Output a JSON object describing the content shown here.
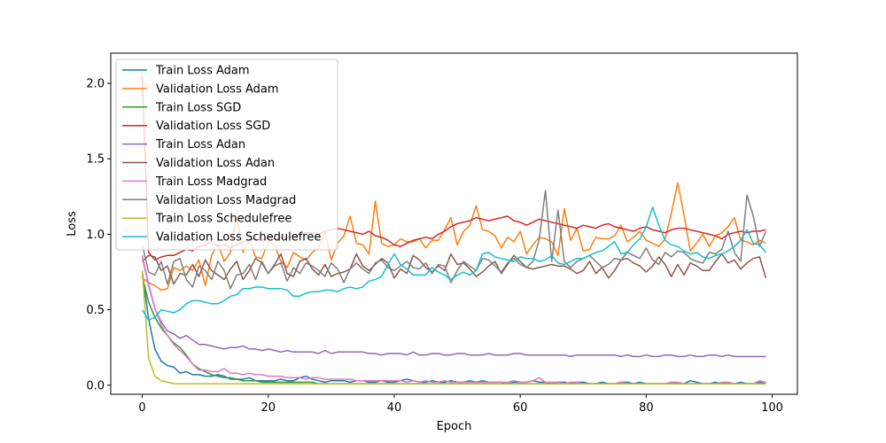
{
  "chart_data": {
    "type": "line",
    "title": "",
    "xlabel": "Epoch",
    "ylabel": "Loss",
    "xlim": [
      -5,
      104
    ],
    "ylim": [
      -0.06,
      2.2
    ],
    "xticks": [
      0,
      20,
      40,
      60,
      80,
      100
    ],
    "yticks": [
      0.0,
      0.5,
      1.0,
      1.5,
      2.0
    ],
    "xtick_labels": [
      "0",
      "20",
      "40",
      "60",
      "80",
      "100"
    ],
    "ytick_labels": [
      "0.0",
      "0.5",
      "1.0",
      "1.5",
      "2.0"
    ],
    "legend_position": "upper-left",
    "series": [
      {
        "name": "Train Loss Adam",
        "color": "#1f77b4",
        "values": [
          0.75,
          0.44,
          0.24,
          0.16,
          0.13,
          0.12,
          0.08,
          0.09,
          0.07,
          0.07,
          0.06,
          0.06,
          0.07,
          0.06,
          0.04,
          0.04,
          0.04,
          0.05,
          0.03,
          0.03,
          0.03,
          0.03,
          0.04,
          0.03,
          0.03,
          0.05,
          0.06,
          0.04,
          0.03,
          0.02,
          0.03,
          0.03,
          0.03,
          0.02,
          0.03,
          0.03,
          0.02,
          0.02,
          0.03,
          0.02,
          0.02,
          0.03,
          0.04,
          0.03,
          0.02,
          0.02,
          0.03,
          0.02,
          0.02,
          0.03,
          0.02,
          0.02,
          0.03,
          0.02,
          0.03,
          0.02,
          0.02,
          0.02,
          0.01,
          0.02,
          0.02,
          0.02,
          0.03,
          0.02,
          0.02,
          0.01,
          0.02,
          0.02,
          0.01,
          0.02,
          0.02,
          0.01,
          0.01,
          0.02,
          0.01,
          0.01,
          0.02,
          0.02,
          0.01,
          0.02,
          0.01,
          0.01,
          0.01,
          0.01,
          0.02,
          0.01,
          0.01,
          0.03,
          0.02,
          0.01,
          0.01,
          0.02,
          0.01,
          0.02,
          0.01,
          0.02,
          0.01,
          0.01,
          0.02,
          0.01
        ]
      },
      {
        "name": "Validation Loss Adam",
        "color": "#ff7f0e",
        "values": [
          0.71,
          0.68,
          0.66,
          0.63,
          0.64,
          0.78,
          0.76,
          0.79,
          0.76,
          0.83,
          0.66,
          0.86,
          0.94,
          0.82,
          0.88,
          1.12,
          0.88,
          0.96,
          0.85,
          0.84,
          0.95,
          0.93,
          0.82,
          0.78,
          0.88,
          0.85,
          0.83,
          0.88,
          0.91,
          1.02,
          0.83,
          0.94,
          0.99,
          1.12,
          0.94,
          0.93,
          0.87,
          1.22,
          0.94,
          0.92,
          0.93,
          0.97,
          0.95,
          0.95,
          0.97,
          0.91,
          0.96,
          0.96,
          1.03,
          1.11,
          0.93,
          1.02,
          1.06,
          1.19,
          1.03,
          1.02,
          0.99,
          0.91,
          0.98,
          0.95,
          1.02,
          0.87,
          0.93,
          0.98,
          0.97,
          0.95,
          0.86,
          1.17,
          0.96,
          1.04,
          0.89,
          0.9,
          0.98,
          0.97,
          0.97,
          0.99,
          1.06,
          0.95,
          0.98,
          1.02,
          0.96,
          0.94,
          0.92,
          0.97,
          1.14,
          1.34,
          1.13,
          0.89,
          0.94,
          1.0,
          0.92,
          0.99,
          1.01,
          1.05,
          1.11,
          0.96,
          0.95,
          0.93,
          0.96,
          0.94
        ]
      },
      {
        "name": "Train Loss SGD",
        "color": "#2ca02c",
        "values": [
          0.72,
          0.55,
          0.45,
          0.38,
          0.33,
          0.28,
          0.25,
          0.2,
          0.14,
          0.11,
          0.09,
          0.07,
          0.06,
          0.05,
          0.05,
          0.04,
          0.03,
          0.03,
          0.03,
          0.02,
          0.02,
          0.02,
          0.02,
          0.02,
          0.02,
          0.02,
          0.02,
          0.02,
          0.01,
          0.01,
          0.01,
          0.01,
          0.01,
          0.01,
          0.01,
          0.01,
          0.01,
          0.01,
          0.01,
          0.01,
          0.01,
          0.01,
          0.01,
          0.01,
          0.01,
          0.01,
          0.01,
          0.01,
          0.01,
          0.01,
          0.01,
          0.01,
          0.01,
          0.01,
          0.01,
          0.01,
          0.01,
          0.01,
          0.01,
          0.01,
          0.01,
          0.01,
          0.01,
          0.01,
          0.01,
          0.01,
          0.01,
          0.01,
          0.01,
          0.01,
          0.01,
          0.01,
          0.01,
          0.01,
          0.01,
          0.01,
          0.01,
          0.01,
          0.01,
          0.01,
          0.01,
          0.01,
          0.01,
          0.01,
          0.01,
          0.01,
          0.01,
          0.01,
          0.01,
          0.01,
          0.01,
          0.01,
          0.01,
          0.01,
          0.01,
          0.01,
          0.01,
          0.01,
          0.01,
          0.01
        ]
      },
      {
        "name": "Validation Loss SGD",
        "color": "#d62728",
        "values": [
          2.05,
          0.88,
          0.83,
          0.85,
          0.86,
          0.86,
          0.88,
          0.9,
          0.89,
          0.92,
          0.93,
          0.95,
          0.92,
          0.93,
          0.91,
          0.93,
          0.95,
          0.96,
          0.97,
          0.96,
          0.98,
          0.97,
          0.98,
          0.98,
          0.99,
          1.0,
          1.01,
          1.01,
          1.0,
          1.02,
          1.03,
          1.04,
          1.03,
          1.02,
          1.01,
          1.0,
          1.02,
          0.99,
          0.98,
          0.96,
          0.93,
          0.92,
          0.94,
          0.96,
          0.97,
          0.98,
          0.97,
          1.0,
          1.02,
          1.05,
          1.07,
          1.08,
          1.09,
          1.11,
          1.1,
          1.09,
          1.1,
          1.11,
          1.12,
          1.09,
          1.08,
          1.06,
          1.08,
          1.1,
          1.09,
          1.08,
          1.07,
          1.06,
          1.05,
          1.04,
          1.06,
          1.05,
          1.04,
          1.06,
          1.07,
          1.05,
          1.04,
          1.03,
          1.02,
          1.04,
          1.05,
          1.03,
          1.02,
          1.01,
          1.03,
          1.04,
          1.04,
          1.03,
          1.02,
          1.01,
          1.0,
          0.99,
          0.97,
          1.0,
          1.01,
          1.02,
          1.01,
          1.02,
          1.02,
          1.03
        ]
      },
      {
        "name": "Train Loss Adan",
        "color": "#9467bd",
        "values": [
          0.85,
          0.66,
          0.51,
          0.42,
          0.36,
          0.34,
          0.31,
          0.33,
          0.3,
          0.27,
          0.27,
          0.26,
          0.25,
          0.24,
          0.25,
          0.25,
          0.26,
          0.24,
          0.24,
          0.23,
          0.24,
          0.23,
          0.22,
          0.23,
          0.22,
          0.22,
          0.22,
          0.22,
          0.21,
          0.23,
          0.21,
          0.22,
          0.22,
          0.22,
          0.22,
          0.22,
          0.21,
          0.21,
          0.2,
          0.21,
          0.21,
          0.21,
          0.2,
          0.22,
          0.2,
          0.2,
          0.21,
          0.21,
          0.2,
          0.2,
          0.21,
          0.21,
          0.2,
          0.2,
          0.2,
          0.21,
          0.2,
          0.2,
          0.2,
          0.21,
          0.21,
          0.2,
          0.2,
          0.2,
          0.2,
          0.2,
          0.2,
          0.2,
          0.19,
          0.2,
          0.2,
          0.2,
          0.2,
          0.2,
          0.2,
          0.2,
          0.19,
          0.2,
          0.19,
          0.19,
          0.2,
          0.19,
          0.19,
          0.2,
          0.2,
          0.19,
          0.19,
          0.2,
          0.19,
          0.19,
          0.2,
          0.2,
          0.19,
          0.2,
          0.19,
          0.19,
          0.19,
          0.19,
          0.19,
          0.19
        ]
      },
      {
        "name": "Validation Loss Adan",
        "color": "#8c564b",
        "values": [
          0.82,
          0.86,
          0.85,
          0.76,
          0.79,
          0.67,
          0.74,
          0.73,
          0.8,
          0.72,
          0.83,
          0.76,
          0.73,
          0.7,
          0.77,
          0.82,
          0.7,
          0.76,
          0.84,
          0.81,
          0.74,
          0.8,
          0.87,
          0.74,
          0.72,
          0.82,
          0.84,
          0.77,
          0.73,
          0.8,
          0.72,
          0.74,
          0.75,
          0.77,
          0.87,
          0.79,
          0.76,
          0.8,
          0.84,
          0.81,
          0.71,
          0.77,
          0.74,
          0.86,
          0.83,
          0.78,
          0.75,
          0.79,
          0.76,
          0.87,
          0.8,
          0.81,
          0.77,
          0.72,
          0.75,
          0.79,
          0.82,
          0.74,
          0.8,
          0.86,
          0.82,
          0.78,
          0.77,
          0.78,
          0.79,
          0.8,
          0.79,
          0.79,
          0.77,
          0.74,
          0.76,
          0.82,
          0.74,
          0.78,
          0.71,
          0.76,
          0.83,
          0.84,
          0.81,
          0.79,
          0.75,
          0.79,
          0.85,
          0.8,
          0.72,
          0.8,
          0.73,
          0.81,
          0.79,
          0.76,
          0.76,
          0.82,
          0.87,
          0.81,
          0.83,
          0.77,
          0.81,
          0.84,
          0.85,
          0.71
        ]
      },
      {
        "name": "Train Loss Madgrad",
        "color": "#e377c2",
        "values": [
          0.86,
          0.67,
          0.51,
          0.4,
          0.33,
          0.27,
          0.23,
          0.19,
          0.14,
          0.1,
          0.1,
          0.09,
          0.09,
          0.11,
          0.08,
          0.08,
          0.07,
          0.08,
          0.07,
          0.07,
          0.06,
          0.06,
          0.06,
          0.05,
          0.05,
          0.05,
          0.04,
          0.05,
          0.05,
          0.04,
          0.04,
          0.04,
          0.04,
          0.04,
          0.03,
          0.03,
          0.03,
          0.03,
          0.03,
          0.03,
          0.03,
          0.03,
          0.02,
          0.03,
          0.02,
          0.03,
          0.02,
          0.02,
          0.03,
          0.02,
          0.02,
          0.02,
          0.02,
          0.02,
          0.02,
          0.02,
          0.02,
          0.02,
          0.02,
          0.03,
          0.02,
          0.02,
          0.03,
          0.05,
          0.02,
          0.02,
          0.02,
          0.01,
          0.02,
          0.02,
          0.01,
          0.01,
          0.01,
          0.01,
          0.01,
          0.01,
          0.02,
          0.01,
          0.01,
          0.01,
          0.01,
          0.01,
          0.01,
          0.01,
          0.02,
          0.02,
          0.01,
          0.01,
          0.01,
          0.01,
          0.01,
          0.01,
          0.02,
          0.02,
          0.01,
          0.01,
          0.01,
          0.01,
          0.03,
          0.02
        ]
      },
      {
        "name": "Validation Loss Madgrad",
        "color": "#7f7f7f",
        "values": [
          0.93,
          0.75,
          0.73,
          0.82,
          0.67,
          0.82,
          0.84,
          0.7,
          0.65,
          0.79,
          0.76,
          0.7,
          0.82,
          0.76,
          0.64,
          0.73,
          0.74,
          0.8,
          0.7,
          0.82,
          0.74,
          0.79,
          0.81,
          0.69,
          0.78,
          0.74,
          0.81,
          0.79,
          0.76,
          0.72,
          0.81,
          0.77,
          0.68,
          0.77,
          0.81,
          0.77,
          0.74,
          0.81,
          0.83,
          0.78,
          0.76,
          0.79,
          0.82,
          0.78,
          0.77,
          0.81,
          0.74,
          0.8,
          0.79,
          0.68,
          0.76,
          0.82,
          0.79,
          0.76,
          0.84,
          0.83,
          0.79,
          0.75,
          0.81,
          0.84,
          0.8,
          0.78,
          0.82,
          0.96,
          1.29,
          0.82,
          1.16,
          0.82,
          0.78,
          0.82,
          0.84,
          0.86,
          0.82,
          0.78,
          0.8,
          0.84,
          0.83,
          0.88,
          0.86,
          0.84,
          0.91,
          0.83,
          0.8,
          0.88,
          0.85,
          0.89,
          0.88,
          0.84,
          0.82,
          0.81,
          0.88,
          0.87,
          0.9,
          1.02,
          0.88,
          0.82,
          1.26,
          1.12,
          0.92,
          1.02
        ]
      },
      {
        "name": "Train Loss Schedulefree",
        "color": "#bcbd22",
        "values": [
          0.76,
          0.18,
          0.06,
          0.03,
          0.02,
          0.01,
          0.01,
          0.01,
          0.01,
          0.01,
          0.01,
          0.01,
          0.01,
          0.01,
          0.01,
          0.01,
          0.01,
          0.01,
          0.01,
          0.01,
          0.01,
          0.01,
          0.01,
          0.01,
          0.01,
          0.01,
          0.01,
          0.01,
          0.01,
          0.01,
          0.01,
          0.01,
          0.01,
          0.01,
          0.01,
          0.01,
          0.01,
          0.01,
          0.01,
          0.01,
          0.01,
          0.01,
          0.01,
          0.01,
          0.01,
          0.01,
          0.01,
          0.01,
          0.01,
          0.01,
          0.01,
          0.01,
          0.01,
          0.01,
          0.01,
          0.01,
          0.01,
          0.01,
          0.01,
          0.01,
          0.01,
          0.01,
          0.01,
          0.01,
          0.01,
          0.01,
          0.01,
          0.01,
          0.01,
          0.01,
          0.01,
          0.01,
          0.01,
          0.01,
          0.01,
          0.01,
          0.01,
          0.01,
          0.01,
          0.01,
          0.01,
          0.01,
          0.01,
          0.01,
          0.01,
          0.01,
          0.01,
          0.01,
          0.01,
          0.01,
          0.01,
          0.01,
          0.01,
          0.01,
          0.01,
          0.01,
          0.01,
          0.01,
          0.01,
          0.01
        ]
      },
      {
        "name": "Validation Loss Schedulefree",
        "color": "#17becf",
        "values": [
          0.5,
          0.43,
          0.45,
          0.5,
          0.49,
          0.48,
          0.5,
          0.54,
          0.56,
          0.56,
          0.55,
          0.54,
          0.54,
          0.56,
          0.59,
          0.6,
          0.64,
          0.64,
          0.65,
          0.65,
          0.64,
          0.64,
          0.64,
          0.63,
          0.59,
          0.59,
          0.61,
          0.62,
          0.62,
          0.63,
          0.63,
          0.62,
          0.64,
          0.65,
          0.64,
          0.65,
          0.69,
          0.7,
          0.72,
          0.8,
          0.87,
          0.8,
          0.77,
          0.73,
          0.73,
          0.73,
          0.78,
          0.75,
          0.73,
          0.7,
          0.73,
          0.75,
          0.73,
          0.76,
          0.87,
          0.88,
          0.85,
          0.84,
          0.83,
          0.82,
          0.85,
          0.84,
          0.84,
          0.82,
          0.83,
          0.86,
          0.81,
          0.8,
          0.82,
          0.84,
          0.84,
          0.86,
          0.88,
          0.89,
          0.92,
          0.95,
          0.87,
          0.88,
          0.93,
          0.97,
          1.05,
          1.18,
          1.06,
          0.96,
          0.93,
          0.92,
          0.89,
          0.87,
          0.88,
          0.85,
          0.84,
          0.86,
          0.87,
          0.89,
          0.92,
          0.96,
          1.03,
          0.94,
          0.93,
          0.88
        ]
      }
    ]
  }
}
